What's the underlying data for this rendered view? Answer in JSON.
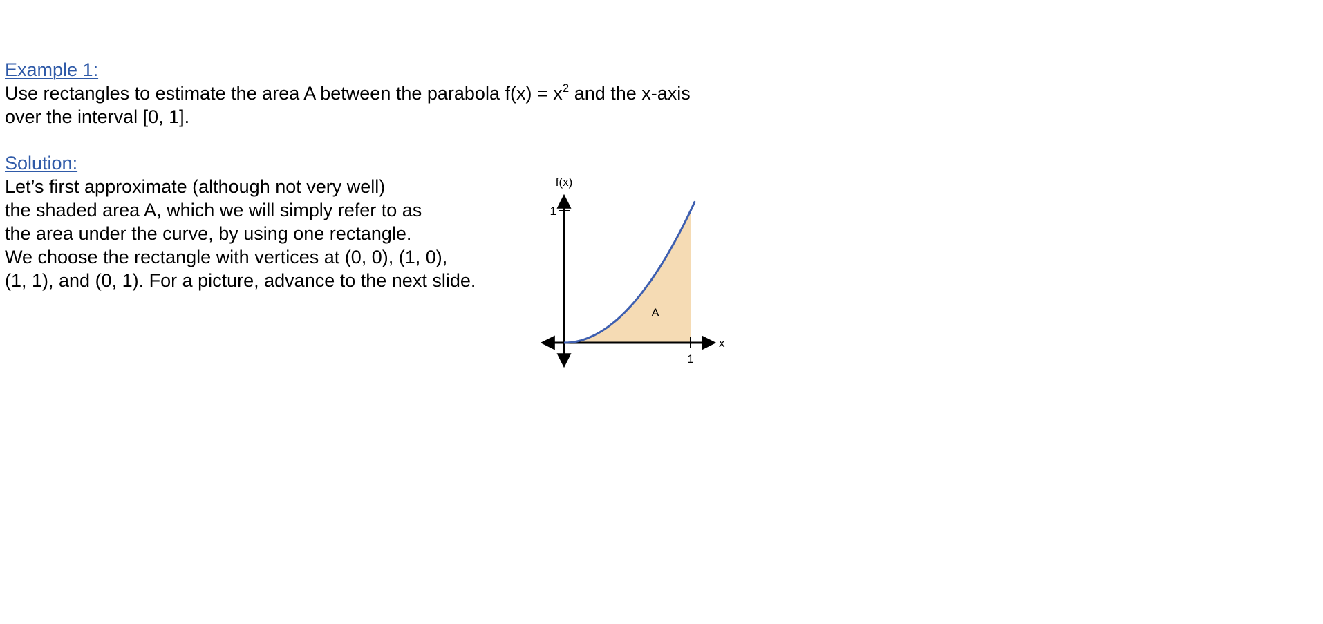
{
  "example": {
    "heading": "Example 1:",
    "problem_before_sup": "Use rectangles to estimate the area A between the parabola f(x) = x",
    "problem_sup": "2",
    "problem_after_sup": " and the x-axis",
    "problem_line2": "over the interval [0, 1]."
  },
  "solution": {
    "heading": "Solution:",
    "lines": [
      "Let’s first approximate (although not very well)",
      "the shaded area A, which we will simply refer to as",
      "the area under the curve, by using one rectangle.",
      "We choose the rectangle with vertices at (0, 0), (1, 0),",
      "(1, 1), and (0, 1).  For a picture, advance to the next slide."
    ]
  },
  "graph": {
    "y_axis_label": "f(x)",
    "x_axis_label": "x",
    "x_tick_label": "1",
    "y_tick_label": "1",
    "area_label": "A",
    "function": "x^2",
    "interval": [
      0,
      1
    ],
    "colors": {
      "curve": "#3e5fb0",
      "shade": "#f5dbb4",
      "axes": "#000000"
    }
  },
  "colors": {
    "heading": "#2f5aa8",
    "text": "#000000"
  }
}
